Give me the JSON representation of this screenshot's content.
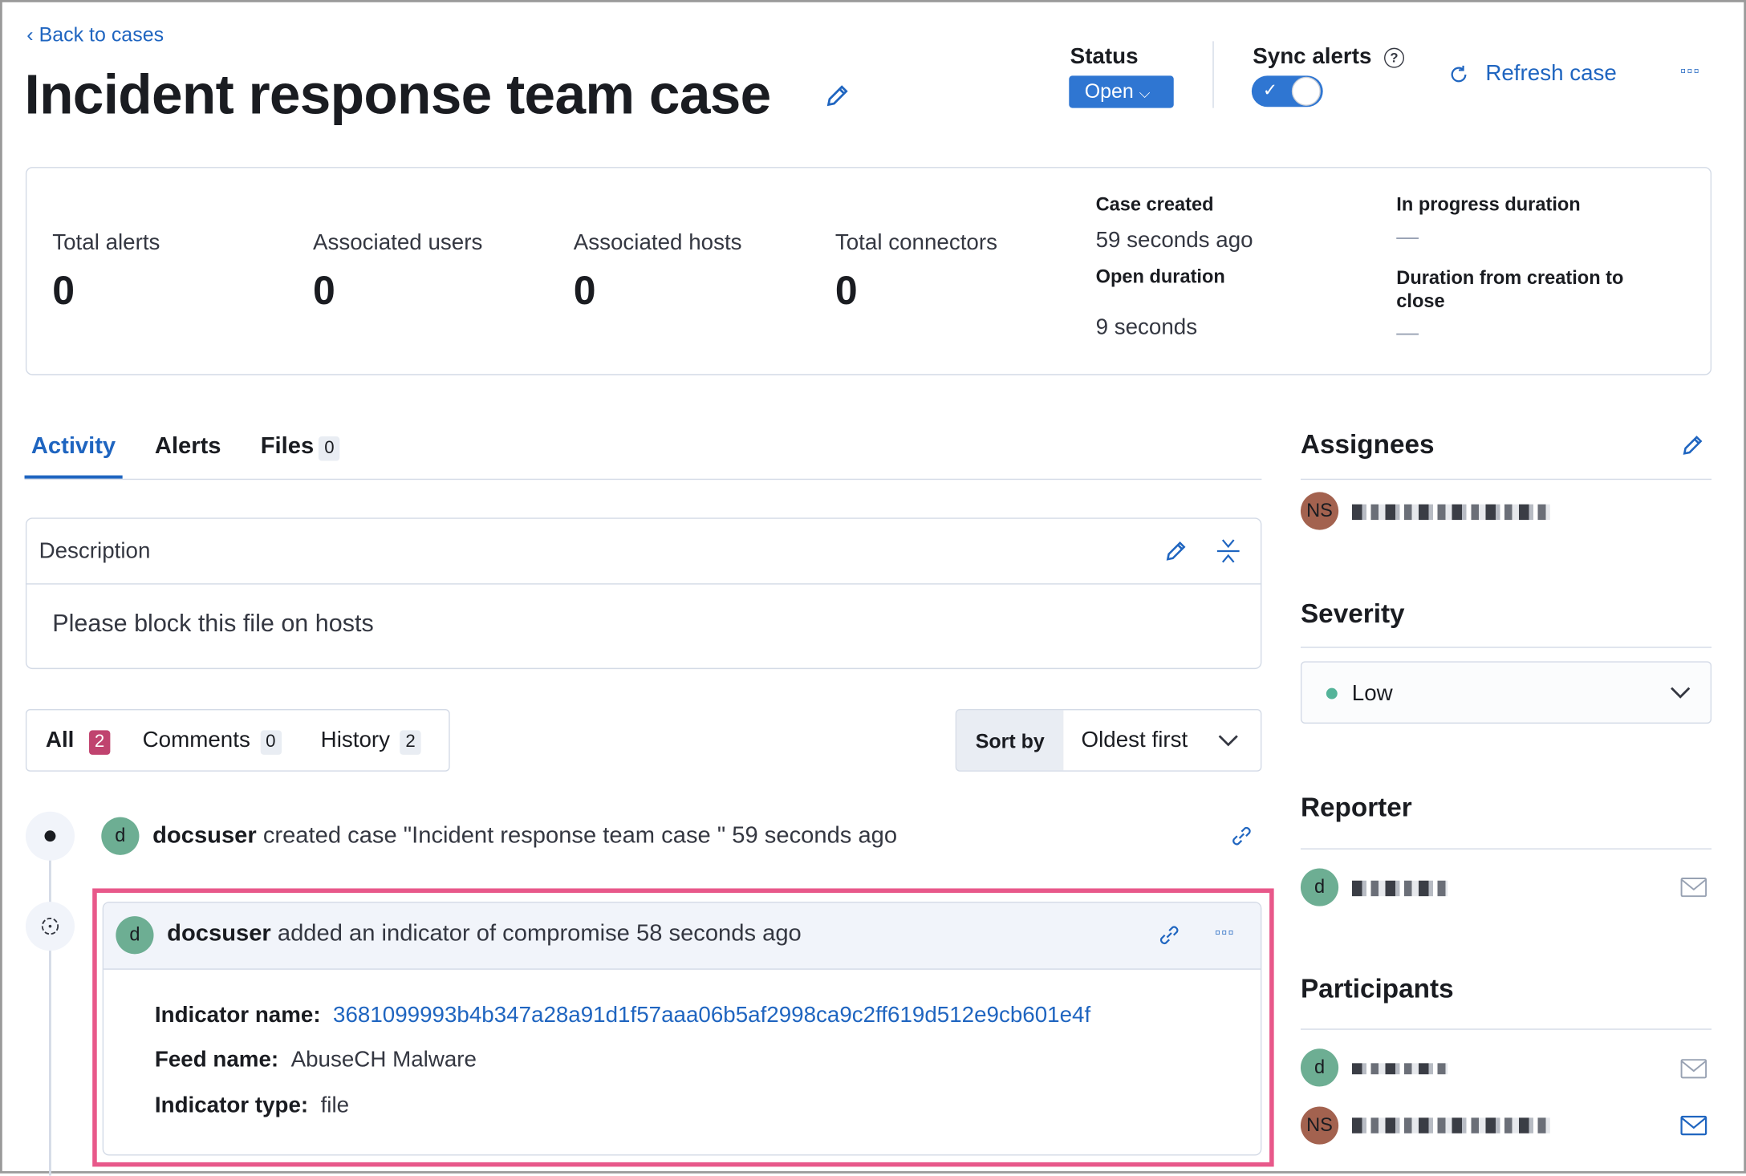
{
  "header": {
    "back_label": "Back to cases",
    "title": "Incident response team case",
    "status_label": "Status",
    "status_value": "Open",
    "sync_label": "Sync alerts",
    "sync_enabled": true,
    "refresh_label": "Refresh case"
  },
  "stats": [
    {
      "label": "Total alerts",
      "value": "0"
    },
    {
      "label": "Associated users",
      "value": "0"
    },
    {
      "label": "Associated hosts",
      "value": "0"
    },
    {
      "label": "Total connectors",
      "value": "0"
    }
  ],
  "durations": {
    "case_created_label": "Case created",
    "case_created_value": "59 seconds ago",
    "open_duration_label": "Open duration",
    "open_duration_value": "9 seconds",
    "in_progress_label": "In progress duration",
    "in_progress_value": "—",
    "close_label": "Duration from creation to close",
    "close_value": "—"
  },
  "tabs": [
    {
      "label": "Activity"
    },
    {
      "label": "Alerts"
    },
    {
      "label": "Files",
      "count": "0"
    }
  ],
  "description": {
    "title": "Description",
    "text": "Please block this file on hosts"
  },
  "filters": [
    {
      "label": "All",
      "count": "2"
    },
    {
      "label": "Comments",
      "count": "0"
    },
    {
      "label": "History",
      "count": "2"
    }
  ],
  "sort": {
    "label": "Sort by",
    "value": "Oldest first"
  },
  "activity": [
    {
      "avatar": "d",
      "user": "docsuser",
      "text": "created case \"Incident response team case \" 59 seconds ago"
    },
    {
      "avatar": "d",
      "user": "docsuser",
      "text": "added an indicator of compromise 58 seconds ago",
      "fields": [
        {
          "label": "Indicator name:",
          "value": "3681099993b4b347a28a91d1f57aaa06b5af2998ca9c2ff619d512e9cb601e4f"
        },
        {
          "label": "Feed name:",
          "value": "AbuseCH Malware"
        },
        {
          "label": "Indicator type:",
          "value": "file"
        }
      ]
    }
  ],
  "sidebar": {
    "assignees_title": "Assignees",
    "assignee_initials": "NS",
    "severity_title": "Severity",
    "severity_value": "Low",
    "severity_color": "#54b399",
    "reporter_title": "Reporter",
    "reporter_initials": "d",
    "participants_title": "Participants",
    "participant_initials": [
      "d",
      "NS"
    ]
  },
  "colors": {
    "accent": "#1f65c0",
    "highlight": "#e8588a",
    "all_badge": "#c0436f"
  }
}
